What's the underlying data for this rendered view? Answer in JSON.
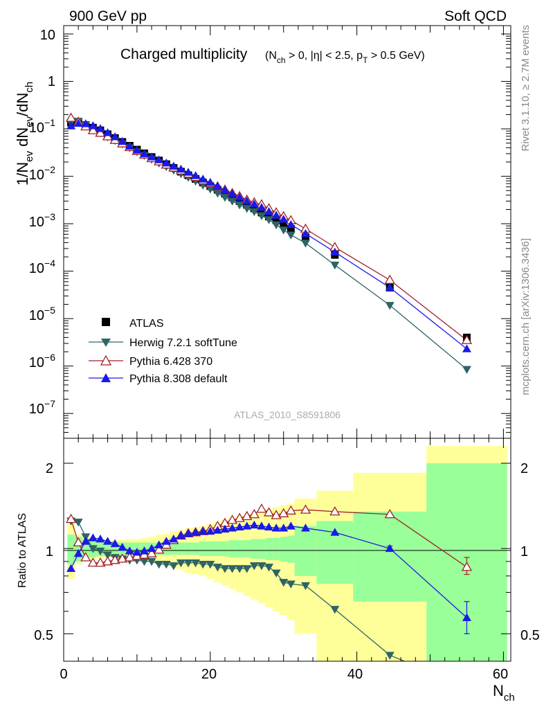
{
  "header": {
    "left": "900 GeV pp",
    "right": "Soft QCD"
  },
  "side_text": {
    "top": "Rivet 3.1.10, ≥ 2.7M events",
    "bottom": "mcplots.cern.ch [arXiv:1306.3436]"
  },
  "chart_data": [
    {
      "type": "scatter",
      "panel": "main",
      "title_main": "Charged multiplicity",
      "title_cuts": "(N_ch > 0, |η| < 2.5, p_T > 0.5 GeV)",
      "title_cut_text": {
        "n": "N",
        "n_sub": "ch",
        "n_rest": " > 0, |η| < 2.5, p",
        "p_sub": "T",
        "p_rest": " > 0.5 GeV)"
      },
      "ylabel": "1/N_ev dN_ev/dN_ch",
      "ylabel_parts": {
        "a": "1/N",
        "a_sub": "ev",
        "b": " dN",
        "b_sub": "ev",
        "c": "/dN",
        "c_sub": "ch"
      },
      "yscale": "log",
      "ylim": [
        3e-08,
        15
      ],
      "yticks": [
        1e-07,
        1e-06,
        1e-05,
        0.0001,
        0.001,
        0.01,
        0.1,
        1,
        10
      ],
      "ytick_labels": {
        "m7": {
          "base": "10",
          "exp": "−7"
        },
        "m6": {
          "base": "10",
          "exp": "−6"
        },
        "m5": {
          "base": "10",
          "exp": "−5"
        },
        "m4": {
          "base": "10",
          "exp": "−4"
        },
        "m3": {
          "base": "10",
          "exp": "−3"
        },
        "m2": {
          "base": "10",
          "exp": "−2"
        },
        "m1": {
          "base": "10",
          "exp": "−1"
        },
        "p0": "1",
        "p1": "10"
      },
      "xlim": [
        0,
        61
      ],
      "watermark": "ATLAS_2010_S8591806",
      "legend_position": "bottom-left",
      "series": [
        {
          "name": "ATLAS",
          "color": "#000000",
          "marker": "square",
          "line": false,
          "x": [
            1,
            2,
            3,
            4,
            5,
            6,
            7,
            8,
            9,
            10,
            11,
            12,
            13,
            14,
            15,
            16,
            17,
            18,
            19,
            20,
            21,
            22,
            23,
            24,
            25,
            26,
            27,
            28,
            29,
            30,
            31,
            33,
            37,
            44.5,
            55
          ],
          "y": [
            0.135,
            0.135,
            0.12,
            0.106,
            0.093,
            0.077,
            0.064,
            0.053,
            0.044,
            0.0365,
            0.0305,
            0.0255,
            0.0215,
            0.018,
            0.015,
            0.0125,
            0.0105,
            0.0088,
            0.0074,
            0.0062,
            0.0052,
            0.0043,
            0.0036,
            0.003,
            0.0025,
            0.0021,
            0.00172,
            0.00142,
            0.00118,
            0.00097,
            0.00078,
            0.00052,
            0.00022,
            4.5e-05,
            4e-06
          ]
        },
        {
          "name": "Herwig 7.2.1 softTune",
          "color": "#2e6466",
          "marker": "triangle-down",
          "line": true,
          "x": [
            1,
            2,
            3,
            4,
            5,
            6,
            7,
            8,
            9,
            10,
            11,
            12,
            13,
            14,
            15,
            16,
            17,
            18,
            19,
            20,
            21,
            22,
            23,
            24,
            25,
            26,
            27,
            28,
            29,
            30,
            31,
            33,
            37,
            44.5,
            55
          ],
          "y": [
            0.135,
            0.145,
            0.12,
            0.095,
            0.082,
            0.068,
            0.057,
            0.048,
            0.04,
            0.033,
            0.0275,
            0.0228,
            0.019,
            0.016,
            0.0134,
            0.0113,
            0.0095,
            0.0079,
            0.0065,
            0.0054,
            0.0044,
            0.0036,
            0.003,
            0.0025,
            0.0021,
            0.0018,
            0.00148,
            0.00122,
            0.00095,
            0.00074,
            0.00058,
            0.00039,
            0.000135,
            1.9e-05,
            8.5e-07
          ]
        },
        {
          "name": "Pythia 6.428 370",
          "color": "#a01f25",
          "marker": "triangle-up-open",
          "line": true,
          "x": [
            1,
            2,
            3,
            4,
            5,
            6,
            7,
            8,
            9,
            10,
            11,
            12,
            13,
            14,
            15,
            16,
            17,
            18,
            19,
            20,
            21,
            22,
            23,
            24,
            25,
            26,
            27,
            28,
            29,
            30,
            31,
            33,
            37,
            44.5,
            55
          ],
          "y": [
            0.17,
            0.14,
            0.112,
            0.093,
            0.082,
            0.069,
            0.058,
            0.049,
            0.041,
            0.034,
            0.0285,
            0.024,
            0.0205,
            0.0175,
            0.0152,
            0.0132,
            0.0113,
            0.0096,
            0.0082,
            0.0071,
            0.0061,
            0.0052,
            0.0044,
            0.0038,
            0.0032,
            0.0028,
            0.00255,
            0.0021,
            0.00172,
            0.00143,
            0.00118,
            0.00078,
            0.00032,
            6.5e-05,
            3.5e-06
          ]
        },
        {
          "name": "Pythia 8.308 default",
          "color": "#1a1ae6",
          "marker": "triangle-up",
          "line": true,
          "x": [
            1,
            2,
            3,
            4,
            5,
            6,
            7,
            8,
            9,
            10,
            11,
            12,
            13,
            14,
            15,
            16,
            17,
            18,
            19,
            20,
            21,
            22,
            23,
            24,
            25,
            26,
            27,
            28,
            29,
            30,
            31,
            33,
            37,
            44.5,
            55
          ],
          "y": [
            0.115,
            0.13,
            0.128,
            0.116,
            0.101,
            0.083,
            0.068,
            0.054,
            0.043,
            0.0355,
            0.0298,
            0.0255,
            0.0222,
            0.019,
            0.0163,
            0.0141,
            0.0121,
            0.0103,
            0.0087,
            0.0074,
            0.0062,
            0.0051,
            0.0043,
            0.0036,
            0.003,
            0.0026,
            0.0022,
            0.0018,
            0.0015,
            0.00124,
            0.00096,
            0.00062,
            0.000252,
            4.5e-05,
            2.3e-06
          ]
        }
      ]
    },
    {
      "type": "scatter",
      "panel": "ratio",
      "ylabel": "Ratio to ATLAS",
      "yscale": "log",
      "ylim": [
        0.4,
        2.45
      ],
      "yticks": [
        0.5,
        1,
        2
      ],
      "ytick_labels": [
        "0.5",
        "1",
        "2"
      ],
      "xlabel": "N_ch",
      "xlabel_parts": {
        "main": "N",
        "sub": "ch"
      },
      "xlim": [
        0,
        61
      ],
      "xticks": [
        0,
        20,
        40,
        60
      ],
      "xtick_labels": [
        "0",
        "20",
        "40",
        "60"
      ],
      "bands": {
        "edges": [
          0.5,
          1.5,
          2.5,
          3.5,
          4.5,
          5.5,
          6.5,
          7.5,
          8.5,
          9.5,
          10.5,
          11.5,
          12.5,
          13.5,
          14.5,
          15.5,
          16.5,
          17.5,
          18.5,
          19.5,
          20.5,
          21.5,
          22.5,
          23.5,
          24.5,
          25.5,
          26.5,
          27.5,
          28.5,
          29.5,
          30.5,
          31.5,
          34.5,
          39.5,
          49.5,
          60.5
        ],
        "green_half": [
          0.12,
          0.1,
          0.08,
          0.07,
          0.06,
          0.06,
          0.055,
          0.05,
          0.05,
          0.05,
          0.05,
          0.05,
          0.05,
          0.05,
          0.05,
          0.05,
          0.05,
          0.05,
          0.06,
          0.06,
          0.06,
          0.06,
          0.07,
          0.07,
          0.07,
          0.08,
          0.08,
          0.09,
          0.09,
          0.1,
          0.11,
          0.2,
          0.25,
          0.35,
          1.0
        ],
        "yellow_half": [
          0.22,
          0.12,
          0.1,
          0.09,
          0.08,
          0.07,
          0.07,
          0.07,
          0.08,
          0.08,
          0.09,
          0.1,
          0.12,
          0.13,
          0.15,
          0.16,
          0.18,
          0.19,
          0.2,
          0.22,
          0.24,
          0.26,
          0.28,
          0.3,
          0.32,
          0.34,
          0.36,
          0.38,
          0.4,
          0.42,
          0.44,
          0.5,
          0.6,
          0.85,
          1.3
        ]
      },
      "series": [
        {
          "name": "Herwig 7.2.1 softTune",
          "color": "#2e6466",
          "marker": "triangle-down",
          "x": [
            1,
            2,
            3,
            4,
            5,
            6,
            7,
            8,
            9,
            10,
            11,
            12,
            13,
            14,
            15,
            16,
            17,
            18,
            19,
            20,
            21,
            22,
            23,
            24,
            25,
            26,
            27,
            28,
            29,
            30,
            31,
            33,
            37,
            44.5
          ],
          "y": [
            1.25,
            1.24,
            1.1,
            1.0,
            0.98,
            0.95,
            0.93,
            0.92,
            0.91,
            0.91,
            0.9,
            0.9,
            0.88,
            0.88,
            0.87,
            0.89,
            0.89,
            0.89,
            0.88,
            0.88,
            0.86,
            0.85,
            0.85,
            0.85,
            0.85,
            0.87,
            0.87,
            0.86,
            0.82,
            0.76,
            0.75,
            0.74,
            0.61,
            0.42
          ],
          "extend_to": {
            "x": 46.5,
            "y": 0.4
          }
        },
        {
          "name": "Pythia 6.428 370",
          "color": "#a01f25",
          "marker": "triangle-up-open",
          "x": [
            1,
            2,
            3,
            4,
            5,
            6,
            7,
            8,
            9,
            10,
            11,
            12,
            13,
            14,
            15,
            16,
            17,
            18,
            19,
            20,
            21,
            22,
            23,
            24,
            25,
            26,
            27,
            28,
            29,
            30,
            31,
            33,
            37,
            44.5,
            55
          ],
          "y": [
            1.27,
            1.05,
            0.93,
            0.89,
            0.89,
            0.9,
            0.91,
            0.92,
            0.93,
            0.94,
            0.95,
            0.96,
            0.99,
            1.03,
            1.07,
            1.11,
            1.13,
            1.14,
            1.15,
            1.17,
            1.2,
            1.23,
            1.26,
            1.28,
            1.3,
            1.32,
            1.38,
            1.34,
            1.31,
            1.33,
            1.36,
            1.37,
            1.35,
            1.32,
            0.86
          ],
          "errors_at": {
            "55": [
              0.81,
              0.93
            ]
          }
        },
        {
          "name": "Pythia 8.308 default",
          "color": "#1a1ae6",
          "marker": "triangle-up",
          "x": [
            1,
            2,
            3,
            4,
            5,
            6,
            7,
            8,
            9,
            10,
            11,
            12,
            13,
            14,
            15,
            16,
            17,
            18,
            19,
            20,
            21,
            22,
            23,
            24,
            25,
            26,
            27,
            28,
            29,
            30,
            31,
            33,
            37,
            44.5,
            55
          ],
          "y": [
            0.85,
            0.96,
            1.06,
            1.09,
            1.08,
            1.06,
            1.04,
            1.01,
            0.98,
            0.97,
            0.98,
            1.0,
            1.03,
            1.06,
            1.08,
            1.11,
            1.13,
            1.14,
            1.15,
            1.15,
            1.16,
            1.17,
            1.18,
            1.19,
            1.2,
            1.21,
            1.2,
            1.19,
            1.18,
            1.18,
            1.2,
            1.18,
            1.14,
            1.0,
            0.57
          ],
          "errors_at": {
            "44.5": [
              0.98,
              1.02
            ],
            "55": [
              0.5,
              0.65
            ]
          }
        }
      ]
    }
  ]
}
